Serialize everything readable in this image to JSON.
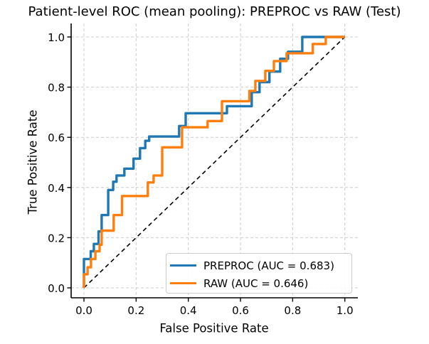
{
  "title": "Patient-level ROC (mean pooling): PREPROC vs RAW (Test)",
  "chart_data": {
    "type": "line",
    "subtype": "roc-step-curves",
    "title": "Patient-level ROC (mean pooling): PREPROC vs RAW (Test)",
    "xlabel": "False Positive Rate",
    "ylabel": "True Positive Rate",
    "xlim": [
      0.0,
      1.0
    ],
    "ylim": [
      0.0,
      1.0
    ],
    "x_ticks": [
      0.0,
      0.2,
      0.4,
      0.6,
      0.8,
      1.0
    ],
    "x_tick_labels": [
      "0.0",
      "0.2",
      "0.4",
      "0.6",
      "0.8",
      "1.0"
    ],
    "y_ticks": [
      0.0,
      0.2,
      0.4,
      0.6,
      0.8,
      1.0
    ],
    "y_tick_labels": [
      "0.0",
      "0.2",
      "0.4",
      "0.6",
      "0.8",
      "1.0"
    ],
    "grid": true,
    "grid_style": "dashed",
    "grid_color": "#cccccc",
    "legend_position": "lower right",
    "background_color": "#ffffff",
    "axis_color": "#000000",
    "series": [
      {
        "name": "PREPROC",
        "label": "PREPROC (AUC = 0.683)",
        "auc": 0.683,
        "color": "#1f77b4",
        "points": [
          [
            0.0,
            0.0
          ],
          [
            0.0,
            0.115
          ],
          [
            0.026,
            0.115
          ],
          [
            0.026,
            0.146
          ],
          [
            0.038,
            0.146
          ],
          [
            0.038,
            0.175
          ],
          [
            0.056,
            0.175
          ],
          [
            0.056,
            0.225
          ],
          [
            0.068,
            0.225
          ],
          [
            0.068,
            0.29
          ],
          [
            0.093,
            0.29
          ],
          [
            0.093,
            0.39
          ],
          [
            0.112,
            0.39
          ],
          [
            0.112,
            0.423
          ],
          [
            0.125,
            0.423
          ],
          [
            0.125,
            0.448
          ],
          [
            0.155,
            0.448
          ],
          [
            0.155,
            0.475
          ],
          [
            0.19,
            0.475
          ],
          [
            0.19,
            0.515
          ],
          [
            0.215,
            0.515
          ],
          [
            0.215,
            0.557
          ],
          [
            0.235,
            0.557
          ],
          [
            0.235,
            0.586
          ],
          [
            0.25,
            0.586
          ],
          [
            0.25,
            0.603
          ],
          [
            0.365,
            0.603
          ],
          [
            0.365,
            0.645
          ],
          [
            0.39,
            0.645
          ],
          [
            0.39,
            0.696
          ],
          [
            0.548,
            0.696
          ],
          [
            0.548,
            0.724
          ],
          [
            0.643,
            0.724
          ],
          [
            0.643,
            0.78
          ],
          [
            0.673,
            0.78
          ],
          [
            0.673,
            0.82
          ],
          [
            0.711,
            0.82
          ],
          [
            0.711,
            0.862
          ],
          [
            0.752,
            0.862
          ],
          [
            0.752,
            0.913
          ],
          [
            0.782,
            0.913
          ],
          [
            0.782,
            0.941
          ],
          [
            0.837,
            0.941
          ],
          [
            0.837,
            1.0
          ],
          [
            1.0,
            1.0
          ]
        ]
      },
      {
        "name": "RAW",
        "label": "RAW (AUC = 0.646)",
        "auc": 0.646,
        "color": "#ff7f0e",
        "points": [
          [
            0.0,
            0.0
          ],
          [
            0.0,
            0.054
          ],
          [
            0.014,
            0.054
          ],
          [
            0.014,
            0.082
          ],
          [
            0.027,
            0.082
          ],
          [
            0.027,
            0.115
          ],
          [
            0.044,
            0.115
          ],
          [
            0.044,
            0.146
          ],
          [
            0.06,
            0.146
          ],
          [
            0.06,
            0.172
          ],
          [
            0.068,
            0.172
          ],
          [
            0.068,
            0.228
          ],
          [
            0.114,
            0.228
          ],
          [
            0.114,
            0.29
          ],
          [
            0.146,
            0.29
          ],
          [
            0.146,
            0.366
          ],
          [
            0.245,
            0.366
          ],
          [
            0.245,
            0.42
          ],
          [
            0.267,
            0.42
          ],
          [
            0.267,
            0.448
          ],
          [
            0.3,
            0.448
          ],
          [
            0.3,
            0.56
          ],
          [
            0.376,
            0.56
          ],
          [
            0.376,
            0.64
          ],
          [
            0.474,
            0.64
          ],
          [
            0.474,
            0.665
          ],
          [
            0.529,
            0.665
          ],
          [
            0.529,
            0.744
          ],
          [
            0.634,
            0.744
          ],
          [
            0.634,
            0.785
          ],
          [
            0.657,
            0.785
          ],
          [
            0.657,
            0.825
          ],
          [
            0.695,
            0.825
          ],
          [
            0.695,
            0.865
          ],
          [
            0.728,
            0.865
          ],
          [
            0.728,
            0.904
          ],
          [
            0.777,
            0.904
          ],
          [
            0.777,
            0.935
          ],
          [
            0.877,
            0.935
          ],
          [
            0.877,
            0.972
          ],
          [
            0.927,
            0.972
          ],
          [
            0.927,
            1.0
          ],
          [
            1.0,
            1.0
          ]
        ]
      }
    ],
    "reference_line": {
      "name": "chance-diagonal",
      "style": "dashed",
      "color": "#000000",
      "from": [
        0.0,
        0.0
      ],
      "to": [
        1.0,
        1.0
      ]
    }
  }
}
